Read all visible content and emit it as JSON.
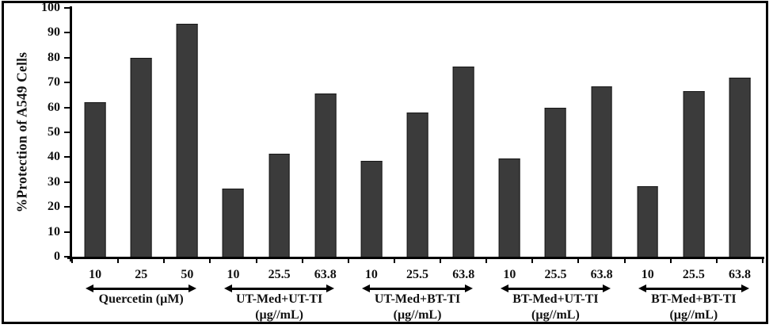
{
  "chart_data": {
    "type": "bar",
    "title": "",
    "ylabel": "%Protection of A549 Cells",
    "xlabel": "",
    "ylim": [
      0,
      100
    ],
    "yticks": [
      0,
      10,
      20,
      30,
      40,
      50,
      60,
      70,
      80,
      90,
      100
    ],
    "grid": false,
    "legend": false,
    "colors": {
      "bar_fill": "#3b3b3b",
      "bar_edge": "#161616",
      "axis": "#000000",
      "text": "#111111",
      "frame": "#000000"
    },
    "groups": [
      {
        "label": "Quercetin (µM)",
        "sublabel": "",
        "categories": [
          "10",
          "25",
          "50"
        ],
        "values": [
          62,
          80,
          93.5
        ]
      },
      {
        "label": "UT-Med+UT-TI",
        "sublabel": "(µg//mL)",
        "categories": [
          "10",
          "25.5",
          "63.8"
        ],
        "values": [
          27.5,
          41.5,
          65.5
        ]
      },
      {
        "label": "UT-Med+BT-TI",
        "sublabel": "(µg//mL)",
        "categories": [
          "10",
          "25.5",
          "63.8"
        ],
        "values": [
          38.5,
          58,
          76.5
        ]
      },
      {
        "label": "BT-Med+UT-TI",
        "sublabel": "(µg//mL)",
        "categories": [
          "10",
          "25.5",
          "63.8"
        ],
        "values": [
          39.5,
          60,
          68.5
        ]
      },
      {
        "label": "BT-Med+BT-TI",
        "sublabel": "(µg//mL)",
        "categories": [
          "10",
          "25.5",
          "63.8"
        ],
        "values": [
          28.5,
          66.5,
          72
        ]
      }
    ]
  }
}
